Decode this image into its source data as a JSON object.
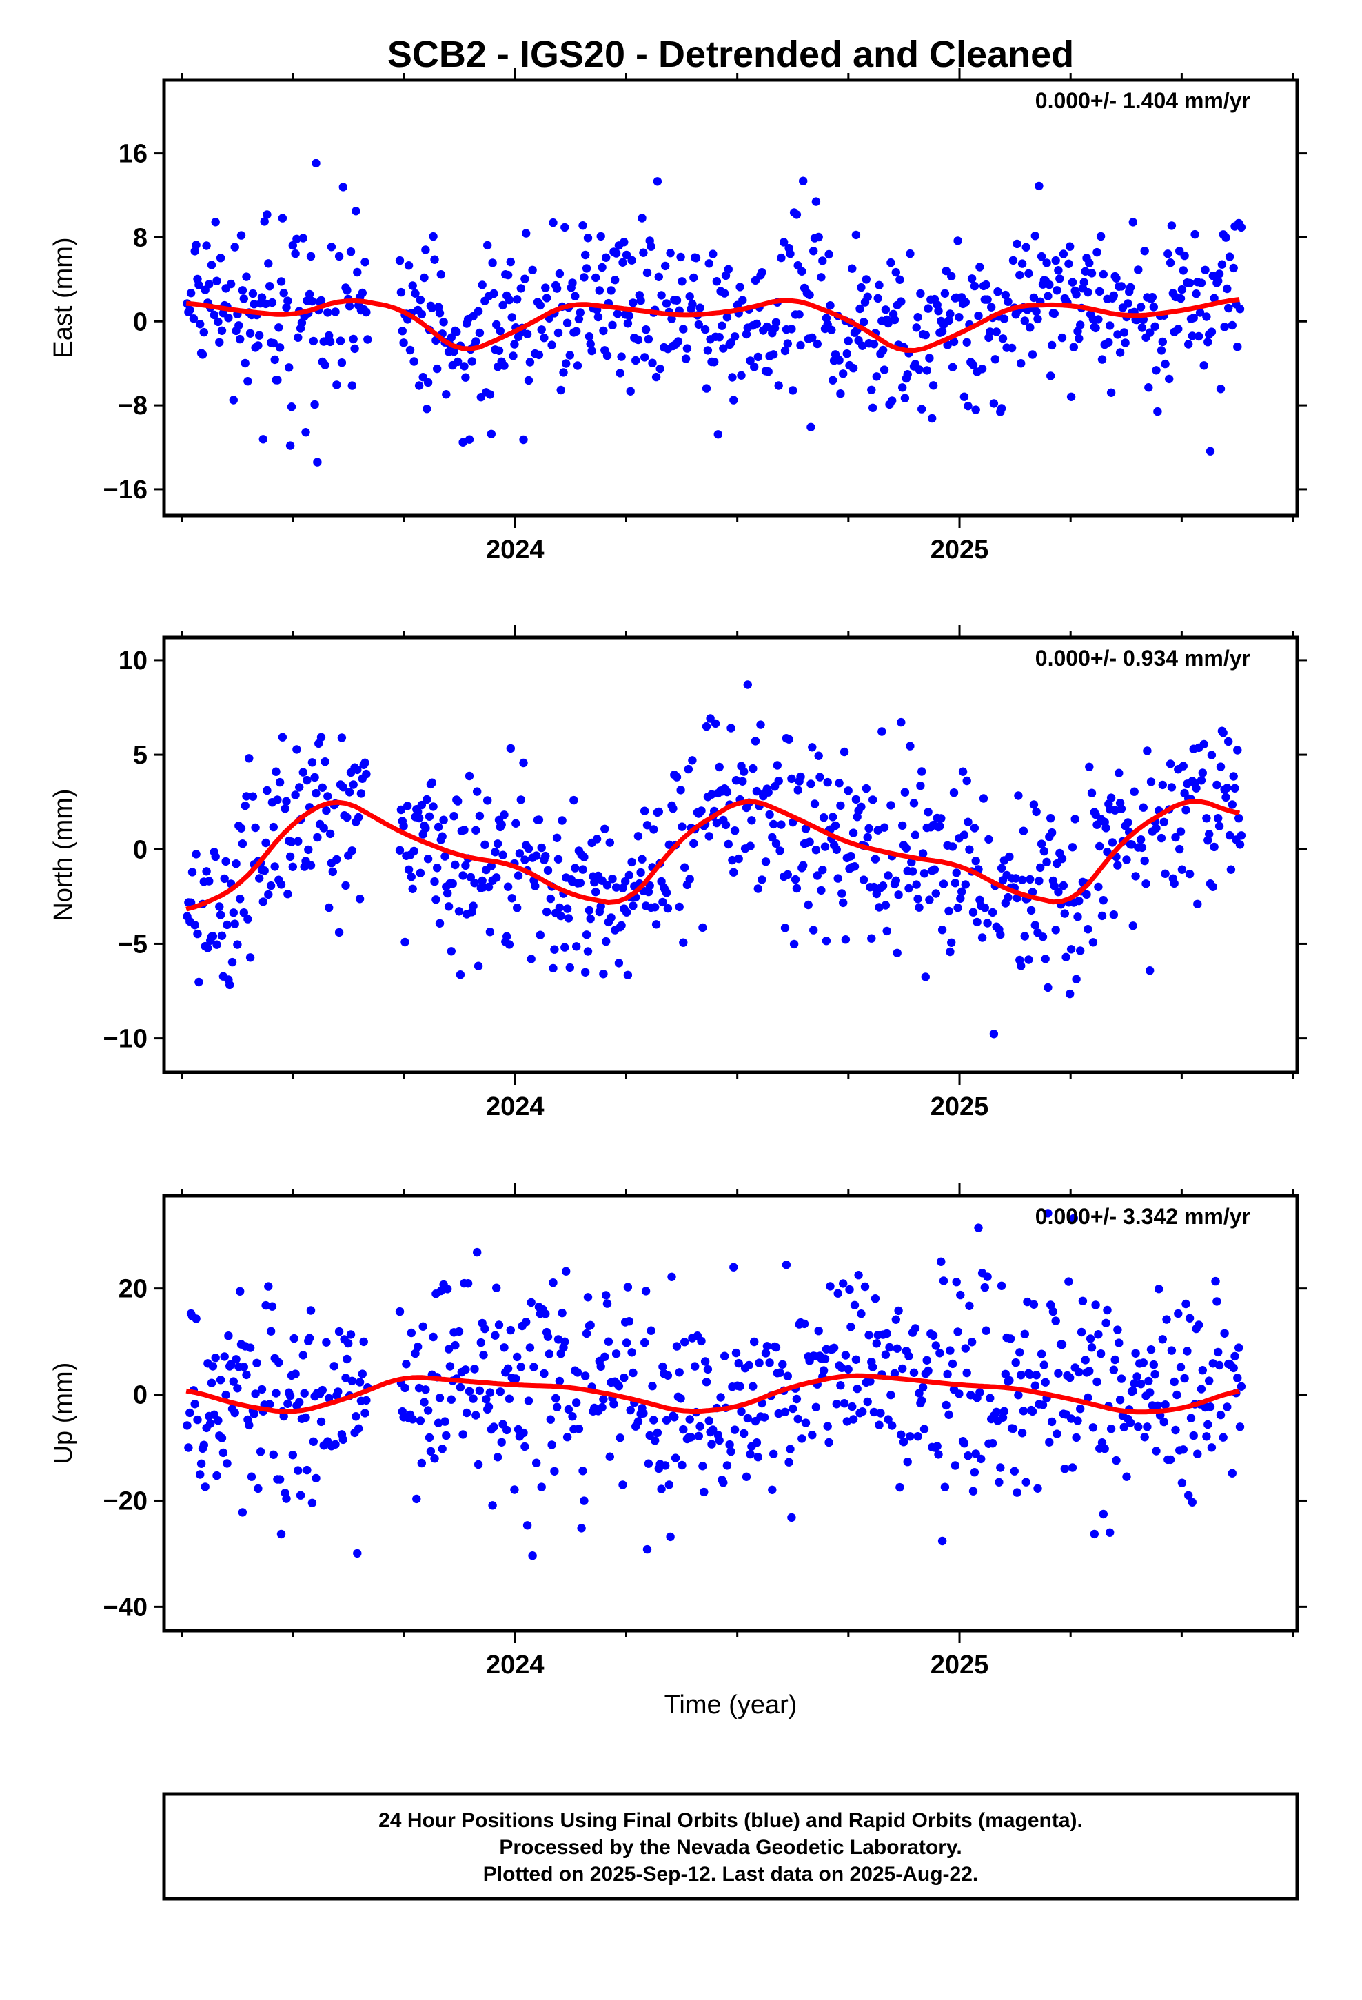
{
  "title": "SCB2 - IGS20 - Detrended and Cleaned",
  "colors": {
    "points": "#0000ff",
    "fit": "#ff0000",
    "axes": "#000000"
  },
  "x_axis": {
    "label": "Time (year)",
    "range": [
      2023.21,
      2025.76
    ],
    "major_ticks": [
      2024,
      2025
    ],
    "major_tick_labels": [
      "2024",
      "2025"
    ],
    "minor_tick_step": 0.25
  },
  "chart_data": [
    {
      "type": "scatter",
      "component": "East",
      "ylabel": "East (mm)",
      "ylim": [
        -18.5,
        23
      ],
      "yticks": [
        16,
        8,
        0,
        -8,
        -16
      ],
      "ytick_labels": [
        "16",
        "8",
        "0",
        "−8",
        "−16"
      ],
      "rate_label": "0.000+/- 1.404 mm/yr",
      "series": [
        {
          "kind": "daily positions",
          "sd": 4.2
        },
        {
          "kind": "seasonal fit",
          "x": [
            2023.26,
            2023.38,
            2023.5,
            2023.62,
            2023.75,
            2023.88,
            2024.0,
            2024.12,
            2024.25,
            2024.38,
            2024.5,
            2024.62,
            2024.75,
            2024.88,
            2025.0,
            2025.12,
            2025.25,
            2025.38,
            2025.5,
            2025.63
          ],
          "y": [
            1.8,
            1.0,
            0.5,
            2.2,
            1.2,
            -3.2,
            -1.0,
            1.8,
            1.2,
            0.5,
            1.0,
            2.3,
            0.2,
            -3.3,
            -1.2,
            1.5,
            1.6,
            0.4,
            1.0,
            2.2
          ]
        }
      ]
    },
    {
      "type": "scatter",
      "component": "North",
      "ylabel": "North (mm)",
      "ylim": [
        -11.8,
        11.2
      ],
      "yticks": [
        10,
        5,
        0,
        -5,
        -10
      ],
      "ytick_labels": [
        "10",
        "5",
        "0",
        "−5",
        "−10"
      ],
      "rate_label": "0.000+/- 0.934 mm/yr",
      "series": [
        {
          "kind": "daily positions",
          "sd": 2.5
        },
        {
          "kind": "seasonal fit",
          "x": [
            2023.26,
            2023.38,
            2023.5,
            2023.6,
            2023.75,
            2023.88,
            2024.0,
            2024.12,
            2024.25,
            2024.38,
            2024.52,
            2024.62,
            2024.75,
            2024.88,
            2025.0,
            2025.12,
            2025.25,
            2025.38,
            2025.52,
            2025.63
          ],
          "y": [
            -3.3,
            -2.0,
            1.5,
            2.8,
            0.8,
            -0.4,
            -0.8,
            -2.4,
            -3.0,
            0.8,
            2.8,
            1.8,
            0.3,
            -0.4,
            -0.8,
            -2.3,
            -3.0,
            0.8,
            2.8,
            1.8
          ]
        }
      ]
    },
    {
      "type": "scatter",
      "component": "Up",
      "ylabel": "Up (mm)",
      "ylim": [
        -44.5,
        37.5
      ],
      "yticks": [
        20,
        0,
        -20,
        -40
      ],
      "ytick_labels": [
        "20",
        "0",
        "−20",
        "−40"
      ],
      "rate_label": "0.000+/- 3.342 mm/yr",
      "series": [
        {
          "kind": "daily positions",
          "sd": 10.5
        },
        {
          "kind": "seasonal fit",
          "x": [
            2023.26,
            2023.38,
            2023.5,
            2023.62,
            2023.75,
            2023.88,
            2024.0,
            2024.12,
            2024.25,
            2024.38,
            2024.5,
            2024.62,
            2024.75,
            2024.88,
            2025.0,
            2025.12,
            2025.25,
            2025.38,
            2025.5,
            2025.63
          ],
          "y": [
            1.0,
            -2.0,
            -3.6,
            -0.8,
            3.5,
            2.6,
            1.8,
            1.5,
            -0.5,
            -3.4,
            -2.5,
            1.5,
            3.8,
            2.9,
            1.8,
            1.3,
            -0.8,
            -3.5,
            -2.8,
            1.0
          ]
        }
      ]
    }
  ],
  "footer": {
    "lines": [
      "24 Hour Positions Using Final Orbits (blue) and Rapid Orbits (magenta).",
      "Processed by the Nevada Geodetic Laboratory.",
      "Plotted on 2025-Sep-12. Last data on 2025-Aug-22."
    ]
  }
}
